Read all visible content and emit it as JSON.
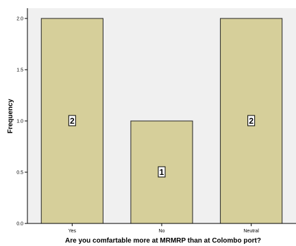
{
  "chart_data": {
    "type": "bar",
    "categories": [
      "Yes",
      "No",
      "Neutral"
    ],
    "values": [
      2,
      1,
      2
    ],
    "data_labels": [
      "2",
      "1",
      "2"
    ],
    "title": "",
    "xlabel": "Are you comfartable more at MRMRP than at Colombo port?",
    "ylabel": "Frequency",
    "ylim": [
      0,
      2.1
    ],
    "yticks": [
      0.0,
      0.5,
      1.0,
      1.5,
      2.0
    ],
    "ytick_labels": [
      "0.0",
      "0.5",
      "1.0",
      "1.5",
      "2.0"
    ],
    "grid": false,
    "legend": "none",
    "colors": {
      "plot_background": "#f0f0f0",
      "bar_fill": "#d6cf9a",
      "bar_stroke": "#222222",
      "label_box": "#ffffff"
    }
  }
}
